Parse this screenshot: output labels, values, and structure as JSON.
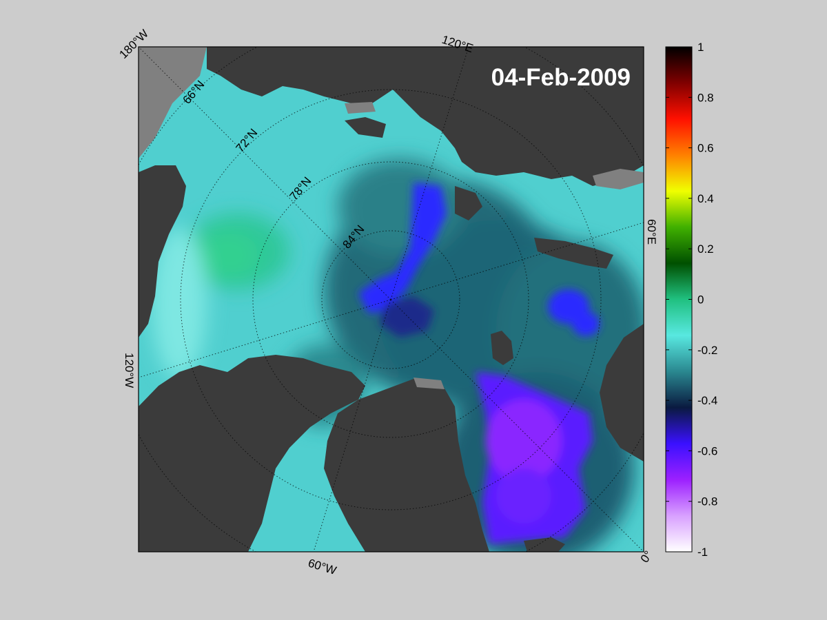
{
  "map": {
    "date_label": "04-Feb-2009",
    "lon_labels": {
      "top_left": "180°W",
      "top": "120°E",
      "right": "60°E",
      "left": "120°W",
      "bottom": "60°W",
      "bottom_right": "0°"
    },
    "lat_labels": [
      "66°N",
      "72°N",
      "78°N",
      "84°N"
    ],
    "colors": {
      "land": "#3b3b3b",
      "land_outside": "#808080",
      "background": "#cccccc",
      "graticule": "#000000"
    }
  },
  "colorbar": {
    "ticks": [
      "1",
      "0.8",
      "0.6",
      "0.4",
      "0.2",
      "0",
      "-0.2",
      "-0.4",
      "-0.6",
      "-0.8",
      "-1"
    ],
    "range": [
      -1,
      1
    ],
    "colors": [
      "#ffffff",
      "#d8a0ff",
      "#9c20ff",
      "#3a10ff",
      "#0a1a40",
      "#2a8890",
      "#58e8e0",
      "#20c080",
      "#005000",
      "#40b000",
      "#f0ff00",
      "#ff8000",
      "#ff1000",
      "#800000",
      "#000000"
    ]
  }
}
